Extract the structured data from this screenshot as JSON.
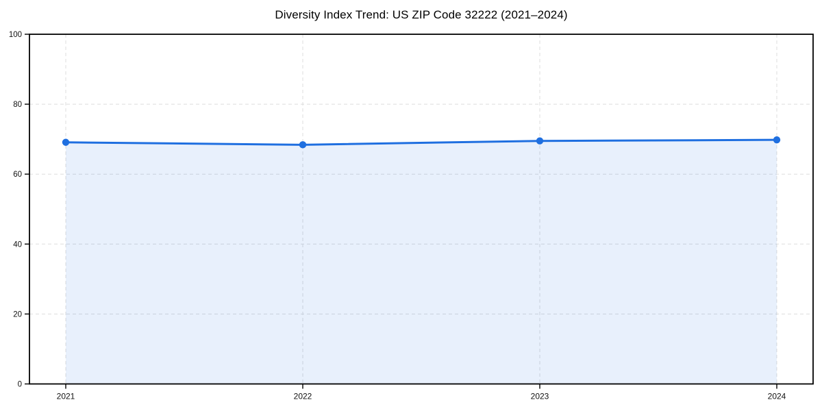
{
  "chart_data": {
    "type": "area",
    "title": "Diversity Index Trend: US ZIP Code 32222 (2021–2024)",
    "categories": [
      "2021",
      "2022",
      "2023",
      "2024"
    ],
    "series": [
      {
        "name": "Diversity Index",
        "values": [
          69.1,
          68.4,
          69.5,
          69.8
        ]
      }
    ],
    "xlabel": "",
    "ylabel": "",
    "ylim": [
      0,
      100
    ],
    "yticks": [
      0,
      20,
      40,
      60,
      80,
      100
    ],
    "grid": "dashed, both axes",
    "legend": "none",
    "colors": {
      "line": "#1f6fe0",
      "marker": "#1f6fe0",
      "fill": "rgba(31,111,224,0.10)",
      "grid": "#dddddd",
      "spine": "#000000",
      "tick_text": "#111111",
      "background": "#ffffff"
    }
  }
}
